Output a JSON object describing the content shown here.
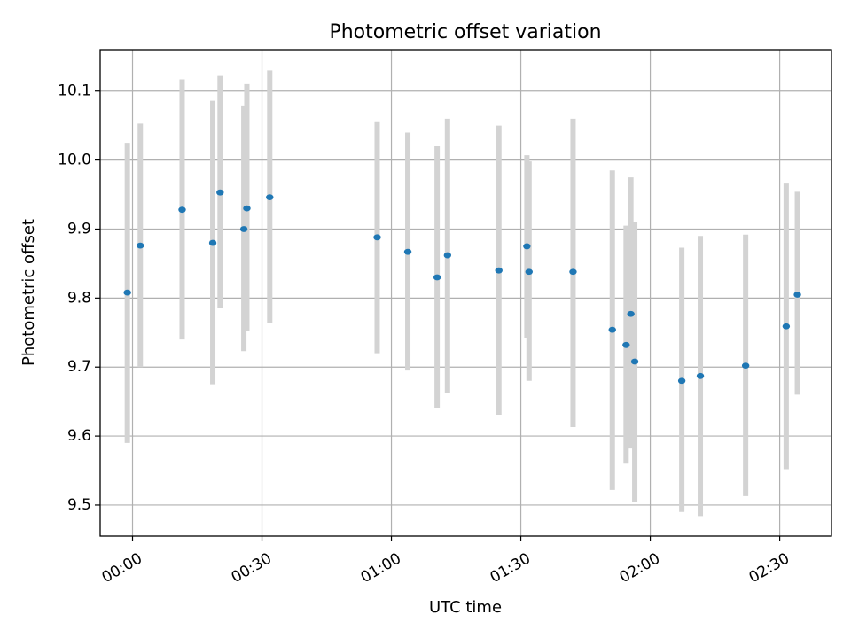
{
  "chart_data": {
    "type": "scatter",
    "title": "Photometric offset variation",
    "xlabel": "UTC time",
    "ylabel": "Photometric offset",
    "x_unit": "minutes after 00:00 UTC",
    "xlim": [
      -7.5,
      162
    ],
    "ylim": [
      9.455,
      10.16
    ],
    "xticks": [
      0,
      30,
      60,
      90,
      120,
      150
    ],
    "xtick_labels": [
      "00:00",
      "00:30",
      "01:00",
      "01:30",
      "02:00",
      "02:30"
    ],
    "yticks": [
      9.5,
      9.6,
      9.7,
      9.8,
      9.9,
      10.0,
      10.1
    ],
    "ytick_labels": [
      "9.5",
      "9.6",
      "9.7",
      "9.8",
      "9.9",
      "10.0",
      "10.1"
    ],
    "grid": true,
    "colors": {
      "point": "#1f77b4",
      "errorbar": "#d3d3d3"
    },
    "points": [
      {
        "x": -1.2,
        "y": 9.808,
        "ylo": 9.59,
        "yhi": 10.025
      },
      {
        "x": 1.8,
        "y": 9.876,
        "ylo": 9.7,
        "yhi": 10.053
      },
      {
        "x": 11.5,
        "y": 9.928,
        "ylo": 9.74,
        "yhi": 10.117
      },
      {
        "x": 18.6,
        "y": 9.88,
        "ylo": 9.675,
        "yhi": 10.086
      },
      {
        "x": 20.3,
        "y": 9.953,
        "ylo": 9.785,
        "yhi": 10.122
      },
      {
        "x": 25.8,
        "y": 9.9,
        "ylo": 9.723,
        "yhi": 10.078
      },
      {
        "x": 26.5,
        "y": 9.93,
        "ylo": 9.752,
        "yhi": 10.11
      },
      {
        "x": 31.8,
        "y": 9.946,
        "ylo": 9.764,
        "yhi": 10.13
      },
      {
        "x": 56.7,
        "y": 9.888,
        "ylo": 9.72,
        "yhi": 10.055
      },
      {
        "x": 63.8,
        "y": 9.867,
        "ylo": 9.695,
        "yhi": 10.04
      },
      {
        "x": 70.6,
        "y": 9.83,
        "ylo": 9.64,
        "yhi": 10.02
      },
      {
        "x": 73.0,
        "y": 9.862,
        "ylo": 9.663,
        "yhi": 10.06
      },
      {
        "x": 84.9,
        "y": 9.84,
        "ylo": 9.631,
        "yhi": 10.05
      },
      {
        "x": 91.4,
        "y": 9.875,
        "ylo": 9.742,
        "yhi": 10.007
      },
      {
        "x": 91.9,
        "y": 9.838,
        "ylo": 9.68,
        "yhi": 9.998
      },
      {
        "x": 102.1,
        "y": 9.838,
        "ylo": 9.613,
        "yhi": 10.06
      },
      {
        "x": 111.2,
        "y": 9.754,
        "ylo": 9.522,
        "yhi": 9.985
      },
      {
        "x": 114.4,
        "y": 9.732,
        "ylo": 9.56,
        "yhi": 9.905
      },
      {
        "x": 115.5,
        "y": 9.777,
        "ylo": 9.582,
        "yhi": 9.975
      },
      {
        "x": 116.4,
        "y": 9.708,
        "ylo": 9.505,
        "yhi": 9.91
      },
      {
        "x": 127.3,
        "y": 9.68,
        "ylo": 9.49,
        "yhi": 9.873
      },
      {
        "x": 131.6,
        "y": 9.687,
        "ylo": 9.484,
        "yhi": 9.89
      },
      {
        "x": 142.1,
        "y": 9.702,
        "ylo": 9.513,
        "yhi": 9.892
      },
      {
        "x": 151.5,
        "y": 9.759,
        "ylo": 9.552,
        "yhi": 9.966
      },
      {
        "x": 154.1,
        "y": 9.805,
        "ylo": 9.66,
        "yhi": 9.954
      }
    ]
  }
}
